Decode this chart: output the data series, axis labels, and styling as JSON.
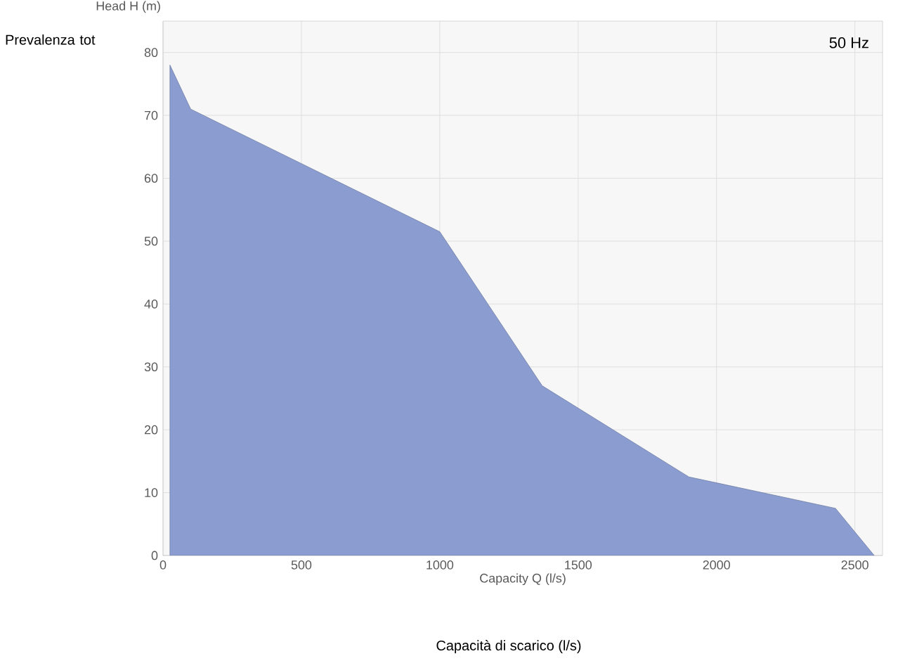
{
  "chart_data": {
    "type": "area",
    "xlabel": "Capacity Q (l/s)",
    "ylabel": "Head H (m)",
    "x": [
      25,
      25,
      100,
      1000,
      1370,
      1900,
      2430,
      2570
    ],
    "values": [
      0,
      78,
      71,
      51.5,
      27,
      12.5,
      7.5,
      0
    ],
    "color": "#8b9dd0",
    "xlim": [
      0,
      2600
    ],
    "ylim": [
      0,
      85
    ],
    "xticks": [
      0,
      500,
      1000,
      1500,
      2000,
      2500
    ],
    "yticks": [
      0,
      10,
      20,
      30,
      40,
      50,
      60,
      70,
      80
    ],
    "grid": true,
    "annotations": [
      "50 Hz",
      "Prevalenza tot",
      "Capacità di scarico (l/s)"
    ]
  }
}
